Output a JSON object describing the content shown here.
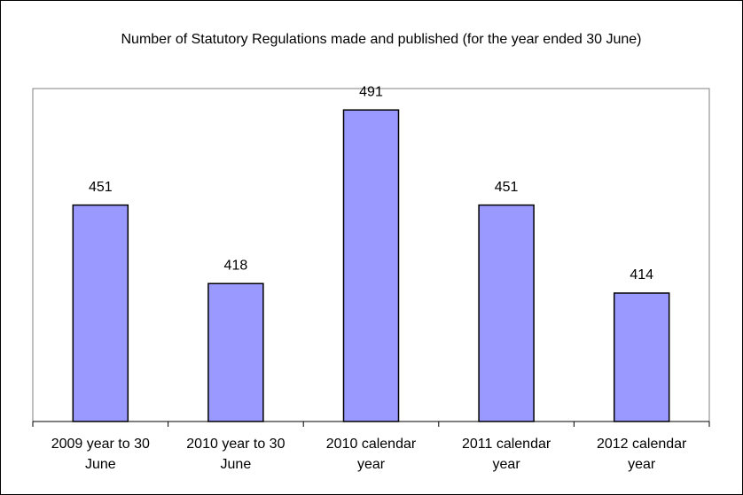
{
  "chart_data": {
    "type": "bar",
    "title": "Number of Statutory Regulations made and published (for the year ended 30 June)",
    "categories": [
      "2009 year to 30 June",
      "2010 year to 30 June",
      "2010 calendar year",
      "2011 calendar year",
      "2012 calendar year"
    ],
    "values": [
      451,
      418,
      491,
      451,
      414
    ],
    "color": "#9999ff",
    "ylim": [
      360,
      500
    ]
  }
}
